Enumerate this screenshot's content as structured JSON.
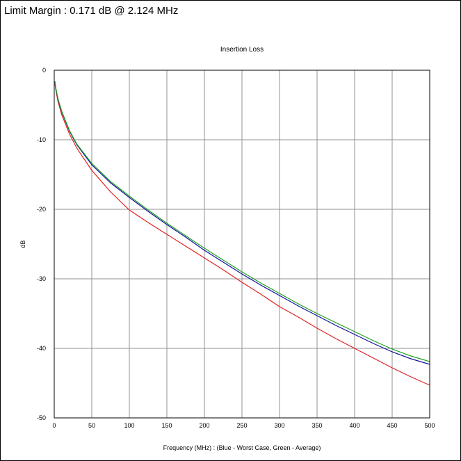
{
  "header": {
    "limit_margin": "Limit Margin : 0.171 dB @ 2.124 MHz"
  },
  "chart_data": {
    "type": "line",
    "title": "Insertion Loss",
    "xlabel": "Frequency (MHz) : (Blue - Worst Case, Green - Average)",
    "ylabel": "dB",
    "xlim": [
      0,
      500
    ],
    "ylim": [
      -50,
      0
    ],
    "x_ticks": [
      "0",
      "50",
      "100",
      "150",
      "200",
      "250",
      "300",
      "350",
      "400",
      "450",
      "500"
    ],
    "y_ticks": [
      "0",
      "-10",
      "-20",
      "-30",
      "-40",
      "-50"
    ],
    "grid": true,
    "series": [
      {
        "color": "#e02020",
        "x": [
          1,
          2,
          5,
          10,
          20,
          30,
          50,
          75,
          100,
          125,
          150,
          175,
          200,
          225,
          250,
          275,
          300,
          325,
          350,
          375,
          400,
          425,
          450,
          475,
          500
        ],
        "y": [
          -2.0,
          -2.8,
          -4.5,
          -6.4,
          -9.1,
          -11.2,
          -14.4,
          -17.5,
          -20.1,
          -21.9,
          -23.6,
          -25.3,
          -27.0,
          -28.7,
          -30.5,
          -32.2,
          -34.0,
          -35.5,
          -37.1,
          -38.6,
          -40.0,
          -41.4,
          -42.8,
          -44.1,
          -45.3
        ]
      },
      {
        "color": "#1010a0",
        "x": [
          1,
          2,
          5,
          10,
          20,
          30,
          50,
          75,
          100,
          125,
          150,
          175,
          200,
          225,
          250,
          275,
          300,
          325,
          350,
          375,
          400,
          425,
          450,
          475,
          500
        ],
        "y": [
          -1.7,
          -2.6,
          -4.2,
          -6.0,
          -8.7,
          -10.7,
          -13.6,
          -16.2,
          -18.3,
          -20.3,
          -22.2,
          -24.0,
          -25.9,
          -27.6,
          -29.3,
          -30.9,
          -32.4,
          -33.9,
          -35.3,
          -36.7,
          -38.0,
          -39.3,
          -40.5,
          -41.5,
          -42.3
        ]
      },
      {
        "color": "#20a020",
        "x": [
          1,
          2,
          5,
          10,
          20,
          30,
          50,
          75,
          100,
          125,
          150,
          175,
          200,
          225,
          250,
          275,
          300,
          325,
          350,
          375,
          400,
          425,
          450,
          475,
          500
        ],
        "y": [
          -1.6,
          -2.5,
          -4.1,
          -5.9,
          -8.6,
          -10.6,
          -13.4,
          -16.0,
          -18.1,
          -20.1,
          -22.0,
          -23.8,
          -25.6,
          -27.3,
          -29.0,
          -30.6,
          -32.1,
          -33.6,
          -35.0,
          -36.3,
          -37.6,
          -38.9,
          -40.1,
          -41.1,
          -41.9
        ]
      }
    ]
  }
}
